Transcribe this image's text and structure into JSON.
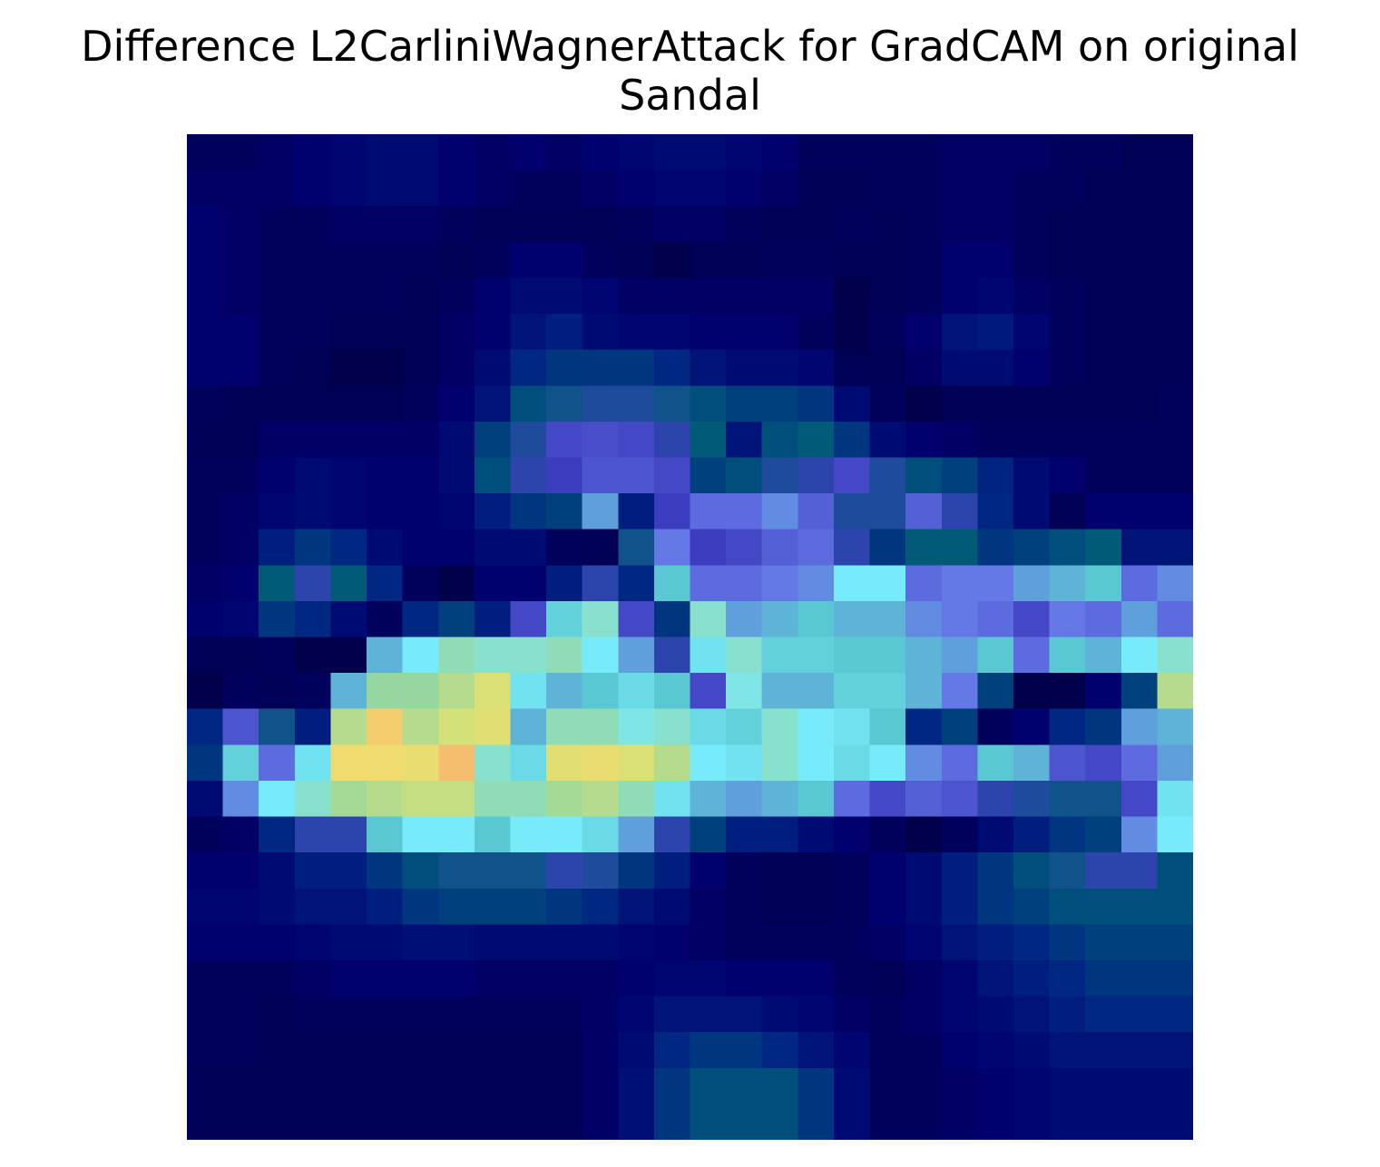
{
  "chart_data": {
    "type": "heatmap",
    "title_lines": [
      "Difference L2CarliniWagnerAttack for GradCAM on original",
      "Sandal"
    ],
    "xlabel": "",
    "ylabel": "",
    "axes_visible": false,
    "grid": false,
    "colorbar": false,
    "rows": 28,
    "cols": 28,
    "colormap": "jet-like (dark navy low → cyan → yellow/orange high)",
    "palette": [
      "#000033",
      "#00007f",
      "#002a8c",
      "#005a7f",
      "#0a7f7f",
      "#4a4adf",
      "#5ad6d6",
      "#7ff0ff",
      "#a8d8a8",
      "#e8e880",
      "#f5c070",
      "#f5a070"
    ],
    "cell_values": [
      [
        0.06,
        0.06,
        0.07,
        0.08,
        0.09,
        0.1,
        0.1,
        0.08,
        0.07,
        0.08,
        0.07,
        0.08,
        0.09,
        0.1,
        0.1,
        0.09,
        0.08,
        0.06,
        0.06,
        0.06,
        0.06,
        0.07,
        0.07,
        0.07,
        0.06,
        0.06,
        0.05,
        0.05
      ],
      [
        0.07,
        0.07,
        0.07,
        0.08,
        0.09,
        0.1,
        0.1,
        0.08,
        0.07,
        0.06,
        0.06,
        0.07,
        0.08,
        0.09,
        0.09,
        0.08,
        0.07,
        0.05,
        0.05,
        0.06,
        0.06,
        0.07,
        0.07,
        0.06,
        0.06,
        0.05,
        0.05,
        0.05
      ],
      [
        0.08,
        0.07,
        0.06,
        0.06,
        0.07,
        0.07,
        0.07,
        0.06,
        0.05,
        0.05,
        0.05,
        0.05,
        0.06,
        0.07,
        0.07,
        0.06,
        0.05,
        0.05,
        0.06,
        0.05,
        0.06,
        0.07,
        0.07,
        0.06,
        0.05,
        0.05,
        0.05,
        0.05
      ],
      [
        0.08,
        0.07,
        0.06,
        0.06,
        0.06,
        0.06,
        0.06,
        0.05,
        0.06,
        0.08,
        0.08,
        0.06,
        0.05,
        0.04,
        0.05,
        0.05,
        0.06,
        0.06,
        0.05,
        0.05,
        0.06,
        0.08,
        0.08,
        0.06,
        0.05,
        0.05,
        0.05,
        0.05
      ],
      [
        0.08,
        0.07,
        0.06,
        0.06,
        0.06,
        0.06,
        0.05,
        0.06,
        0.08,
        0.1,
        0.1,
        0.09,
        0.07,
        0.07,
        0.07,
        0.07,
        0.07,
        0.07,
        0.04,
        0.05,
        0.06,
        0.08,
        0.09,
        0.07,
        0.06,
        0.05,
        0.05,
        0.05
      ],
      [
        0.08,
        0.08,
        0.06,
        0.06,
        0.05,
        0.05,
        0.05,
        0.07,
        0.08,
        0.12,
        0.14,
        0.1,
        0.09,
        0.09,
        0.08,
        0.08,
        0.08,
        0.06,
        0.04,
        0.06,
        0.08,
        0.12,
        0.13,
        0.09,
        0.06,
        0.05,
        0.05,
        0.05
      ],
      [
        0.08,
        0.08,
        0.06,
        0.05,
        0.04,
        0.04,
        0.05,
        0.07,
        0.1,
        0.16,
        0.18,
        0.18,
        0.18,
        0.16,
        0.12,
        0.1,
        0.1,
        0.09,
        0.05,
        0.05,
        0.07,
        0.1,
        0.1,
        0.08,
        0.06,
        0.05,
        0.05,
        0.05
      ],
      [
        0.06,
        0.05,
        0.05,
        0.05,
        0.05,
        0.05,
        0.06,
        0.08,
        0.12,
        0.22,
        0.26,
        0.28,
        0.28,
        0.26,
        0.22,
        0.2,
        0.2,
        0.18,
        0.1,
        0.06,
        0.04,
        0.05,
        0.05,
        0.05,
        0.05,
        0.05,
        0.05,
        0.06
      ],
      [
        0.05,
        0.05,
        0.07,
        0.07,
        0.07,
        0.07,
        0.07,
        0.1,
        0.2,
        0.28,
        0.34,
        0.35,
        0.34,
        0.3,
        0.24,
        0.12,
        0.22,
        0.24,
        0.18,
        0.1,
        0.08,
        0.07,
        0.06,
        0.06,
        0.06,
        0.06,
        0.06,
        0.06
      ],
      [
        0.06,
        0.06,
        0.08,
        0.1,
        0.09,
        0.08,
        0.08,
        0.1,
        0.22,
        0.3,
        0.32,
        0.36,
        0.36,
        0.34,
        0.2,
        0.22,
        0.28,
        0.3,
        0.34,
        0.28,
        0.22,
        0.2,
        0.15,
        0.1,
        0.08,
        0.06,
        0.06,
        0.06
      ],
      [
        0.06,
        0.07,
        0.09,
        0.1,
        0.09,
        0.08,
        0.08,
        0.09,
        0.14,
        0.18,
        0.2,
        0.46,
        0.14,
        0.32,
        0.4,
        0.4,
        0.44,
        0.38,
        0.28,
        0.28,
        0.38,
        0.3,
        0.16,
        0.1,
        0.05,
        0.08,
        0.08,
        0.08
      ],
      [
        0.06,
        0.07,
        0.14,
        0.18,
        0.16,
        0.1,
        0.08,
        0.08,
        0.1,
        0.1,
        0.06,
        0.05,
        0.26,
        0.42,
        0.32,
        0.34,
        0.38,
        0.4,
        0.3,
        0.18,
        0.24,
        0.24,
        0.18,
        0.2,
        0.22,
        0.24,
        0.12,
        0.12
      ],
      [
        0.07,
        0.08,
        0.24,
        0.3,
        0.24,
        0.16,
        0.06,
        0.04,
        0.08,
        0.08,
        0.14,
        0.3,
        0.16,
        0.5,
        0.4,
        0.4,
        0.42,
        0.44,
        0.58,
        0.58,
        0.4,
        0.42,
        0.42,
        0.46,
        0.48,
        0.5,
        0.4,
        0.44
      ],
      [
        0.08,
        0.09,
        0.18,
        0.16,
        0.1,
        0.06,
        0.16,
        0.2,
        0.14,
        0.34,
        0.52,
        0.62,
        0.34,
        0.18,
        0.62,
        0.46,
        0.48,
        0.5,
        0.48,
        0.48,
        0.44,
        0.42,
        0.4,
        0.34,
        0.42,
        0.4,
        0.46,
        0.4
      ],
      [
        0.05,
        0.05,
        0.06,
        0.04,
        0.04,
        0.48,
        0.58,
        0.64,
        0.62,
        0.62,
        0.64,
        0.58,
        0.46,
        0.3,
        0.56,
        0.62,
        0.52,
        0.52,
        0.5,
        0.5,
        0.48,
        0.46,
        0.5,
        0.4,
        0.5,
        0.48,
        0.58,
        0.62
      ],
      [
        0.04,
        0.06,
        0.05,
        0.06,
        0.48,
        0.66,
        0.66,
        0.7,
        0.76,
        0.56,
        0.48,
        0.5,
        0.54,
        0.5,
        0.34,
        0.6,
        0.48,
        0.48,
        0.52,
        0.52,
        0.48,
        0.42,
        0.2,
        0.04,
        0.04,
        0.08,
        0.2,
        0.7
      ],
      [
        0.16,
        0.36,
        0.26,
        0.14,
        0.7,
        0.86,
        0.7,
        0.74,
        0.78,
        0.48,
        0.64,
        0.64,
        0.6,
        0.62,
        0.54,
        0.52,
        0.62,
        0.58,
        0.56,
        0.5,
        0.16,
        0.2,
        0.06,
        0.08,
        0.16,
        0.18,
        0.46,
        0.48
      ],
      [
        0.18,
        0.52,
        0.4,
        0.56,
        0.82,
        0.82,
        0.8,
        0.9,
        0.62,
        0.54,
        0.78,
        0.8,
        0.76,
        0.7,
        0.58,
        0.56,
        0.62,
        0.58,
        0.54,
        0.58,
        0.44,
        0.4,
        0.5,
        0.48,
        0.36,
        0.34,
        0.4,
        0.46
      ],
      [
        0.1,
        0.44,
        0.58,
        0.62,
        0.68,
        0.7,
        0.72,
        0.72,
        0.64,
        0.64,
        0.68,
        0.7,
        0.64,
        0.56,
        0.48,
        0.46,
        0.48,
        0.5,
        0.4,
        0.34,
        0.38,
        0.36,
        0.3,
        0.28,
        0.26,
        0.26,
        0.34,
        0.56
      ],
      [
        0.06,
        0.07,
        0.16,
        0.3,
        0.3,
        0.5,
        0.58,
        0.58,
        0.5,
        0.58,
        0.58,
        0.54,
        0.46,
        0.3,
        0.2,
        0.14,
        0.14,
        0.1,
        0.08,
        0.06,
        0.04,
        0.06,
        0.1,
        0.14,
        0.18,
        0.2,
        0.44,
        0.58
      ],
      [
        0.08,
        0.08,
        0.1,
        0.14,
        0.14,
        0.18,
        0.22,
        0.26,
        0.26,
        0.26,
        0.3,
        0.28,
        0.18,
        0.14,
        0.08,
        0.06,
        0.05,
        0.05,
        0.06,
        0.08,
        0.1,
        0.14,
        0.18,
        0.22,
        0.26,
        0.3,
        0.3,
        0.22
      ],
      [
        0.09,
        0.09,
        0.1,
        0.12,
        0.12,
        0.14,
        0.18,
        0.2,
        0.2,
        0.2,
        0.18,
        0.16,
        0.12,
        0.1,
        0.07,
        0.06,
        0.05,
        0.05,
        0.06,
        0.08,
        0.1,
        0.14,
        0.18,
        0.2,
        0.22,
        0.22,
        0.22,
        0.22
      ],
      [
        0.08,
        0.08,
        0.08,
        0.09,
        0.1,
        0.1,
        0.11,
        0.11,
        0.1,
        0.1,
        0.1,
        0.1,
        0.09,
        0.08,
        0.07,
        0.06,
        0.06,
        0.06,
        0.06,
        0.07,
        0.09,
        0.12,
        0.14,
        0.16,
        0.18,
        0.2,
        0.2,
        0.2
      ],
      [
        0.06,
        0.06,
        0.06,
        0.07,
        0.08,
        0.08,
        0.08,
        0.08,
        0.07,
        0.07,
        0.07,
        0.07,
        0.08,
        0.09,
        0.09,
        0.08,
        0.08,
        0.08,
        0.06,
        0.05,
        0.07,
        0.09,
        0.12,
        0.14,
        0.16,
        0.18,
        0.18,
        0.18
      ],
      [
        0.06,
        0.06,
        0.05,
        0.06,
        0.06,
        0.06,
        0.06,
        0.06,
        0.06,
        0.06,
        0.06,
        0.07,
        0.09,
        0.12,
        0.12,
        0.12,
        0.1,
        0.09,
        0.07,
        0.06,
        0.07,
        0.09,
        0.1,
        0.12,
        0.14,
        0.16,
        0.16,
        0.16
      ],
      [
        0.06,
        0.06,
        0.05,
        0.05,
        0.05,
        0.05,
        0.05,
        0.05,
        0.05,
        0.05,
        0.05,
        0.07,
        0.1,
        0.16,
        0.18,
        0.18,
        0.16,
        0.12,
        0.09,
        0.06,
        0.06,
        0.08,
        0.09,
        0.1,
        0.12,
        0.12,
        0.12,
        0.12
      ],
      [
        0.05,
        0.05,
        0.05,
        0.05,
        0.05,
        0.05,
        0.05,
        0.05,
        0.05,
        0.05,
        0.05,
        0.07,
        0.11,
        0.18,
        0.22,
        0.22,
        0.22,
        0.18,
        0.1,
        0.06,
        0.06,
        0.07,
        0.08,
        0.09,
        0.1,
        0.1,
        0.1,
        0.1
      ],
      [
        0.05,
        0.05,
        0.05,
        0.05,
        0.05,
        0.05,
        0.05,
        0.05,
        0.05,
        0.05,
        0.05,
        0.07,
        0.11,
        0.18,
        0.22,
        0.22,
        0.22,
        0.18,
        0.1,
        0.06,
        0.06,
        0.07,
        0.08,
        0.09,
        0.1,
        0.1,
        0.1,
        0.1
      ]
    ]
  }
}
